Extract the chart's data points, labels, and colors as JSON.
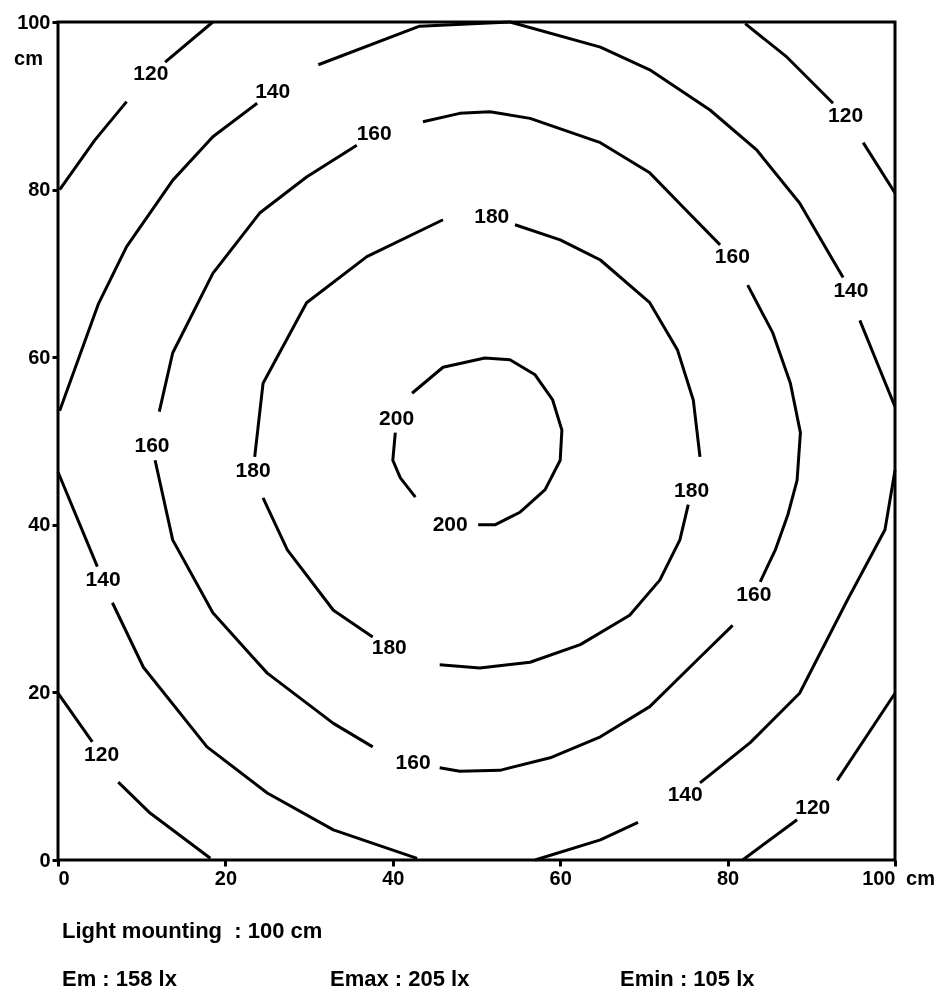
{
  "chart_data": {
    "type": "line",
    "xlim": [
      0,
      100
    ],
    "ylim": [
      0,
      100
    ],
    "xticks": [
      0,
      20,
      40,
      60,
      80,
      100
    ],
    "yticks": [
      0,
      20,
      40,
      60,
      80,
      100
    ],
    "xlabel": "cm",
    "ylabel": "cm",
    "series": [
      {
        "name": "200",
        "color": "#000000",
        "x": [
          42.7,
          40.9,
          40.0,
          40.3
        ],
        "values": [
          43.3,
          45.6,
          47.7,
          51.0
        ]
      },
      {
        "name": "200",
        "color": "#000000",
        "x": [
          42.3,
          46.0,
          51.0,
          54.0,
          57.0,
          59.1,
          60.2,
          60.0,
          58.2,
          55.2,
          52.2,
          50.2
        ],
        "values": [
          55.7,
          58.8,
          59.9,
          59.7,
          57.9,
          54.9,
          51.3,
          47.7,
          44.2,
          41.5,
          40.0,
          40.0
        ]
      },
      {
        "name": "180",
        "color": "#000000",
        "x": [
          46.0,
          36.9,
          29.7,
          24.5,
          23.5
        ],
        "values": [
          76.4,
          72.0,
          66.5,
          56.9,
          48.1
        ]
      },
      {
        "name": "180",
        "color": "#000000",
        "x": [
          24.5,
          27.4,
          32.9,
          37.6
        ],
        "values": [
          43.2,
          37.0,
          29.8,
          26.6
        ]
      },
      {
        "name": "180",
        "color": "#000000",
        "x": [
          45.6,
          50.4,
          56.4,
          62.4,
          68.3,
          71.9,
          74.3,
          75.3
        ],
        "values": [
          23.3,
          22.9,
          23.6,
          25.7,
          29.2,
          33.4,
          38.2,
          42.4
        ]
      },
      {
        "name": "180",
        "color": "#000000",
        "x": [
          76.7,
          75.9,
          74.0,
          70.7,
          64.8,
          60.0,
          54.6
        ],
        "values": [
          48.1,
          54.9,
          60.9,
          66.5,
          71.6,
          74.0,
          75.8
        ]
      },
      {
        "name": "160",
        "color": "#000000",
        "x": [
          43.6,
          48.0,
          51.6,
          56.4,
          64.8,
          70.7,
          74.7,
          79.1
        ],
        "values": [
          88.1,
          89.1,
          89.3,
          88.5,
          85.6,
          82.0,
          77.9,
          73.4
        ]
      },
      {
        "name": "160",
        "color": "#000000",
        "x": [
          82.4,
          85.4,
          87.5,
          88.7,
          88.3,
          87.2,
          85.7,
          83.9
        ],
        "values": [
          68.6,
          62.9,
          56.9,
          51.0,
          45.3,
          41.2,
          37.0,
          33.2
        ]
      },
      {
        "name": "160",
        "color": "#000000",
        "x": [
          80.6,
          76.7,
          70.7,
          64.8,
          58.8,
          52.8,
          48.0,
          45.6
        ],
        "values": [
          28.0,
          24.2,
          18.3,
          14.7,
          12.2,
          10.7,
          10.6,
          11.0
        ]
      },
      {
        "name": "160",
        "color": "#000000",
        "x": [
          37.6,
          32.9,
          25.0,
          18.5,
          13.7,
          11.6
        ],
        "values": [
          13.5,
          16.3,
          22.3,
          29.5,
          38.2,
          47.7
        ]
      },
      {
        "name": "160",
        "color": "#000000",
        "x": [
          12.1,
          13.7,
          18.5,
          24.1,
          29.7,
          35.7
        ],
        "values": [
          53.5,
          60.5,
          70.0,
          77.2,
          81.5,
          85.3
        ]
      },
      {
        "name": "140",
        "color": "#000000",
        "x": [
          0.2,
          4.8,
          8.2,
          13.7,
          18.5,
          23.8
        ],
        "values": [
          53.6,
          66.3,
          73.2,
          81.1,
          86.3,
          90.3
        ]
      },
      {
        "name": "140",
        "color": "#000000",
        "x": [
          31.1,
          43.2,
          54.0,
          64.8,
          70.7,
          77.9,
          83.5,
          88.6,
          93.8
        ],
        "values": [
          94.9,
          99.5,
          100.0,
          97.0,
          94.3,
          89.5,
          84.7,
          78.4,
          69.5
        ]
      },
      {
        "color": "#000000",
        "x": [
          95.8,
          98.2,
          100
        ],
        "values": [
          64.4,
          58.5,
          54.1
        ]
      },
      {
        "name": "140",
        "color": "#000000",
        "x": [
          100,
          98.8,
          94.3,
          88.6,
          82.7,
          76.7
        ],
        "values": [
          46.5,
          39.4,
          31.0,
          19.9,
          14.0,
          9.2
        ]
      },
      {
        "color": "#000000",
        "x": [
          69.3,
          64.8,
          57.0
        ],
        "values": [
          4.5,
          2.4,
          0
        ]
      },
      {
        "name": "140",
        "color": "#000000",
        "x": [
          0,
          4.7
        ],
        "values": [
          46.3,
          35.0
        ]
      },
      {
        "color": "#000000",
        "x": [
          6.5,
          10.2,
          17.8,
          25.0,
          32.9,
          42.9
        ],
        "values": [
          30.7,
          23.0,
          13.5,
          8.0,
          3.6,
          0.2
        ]
      },
      {
        "name": "120",
        "color": "#000000",
        "x": [
          18.5,
          12.8
        ],
        "values": [
          100,
          95.2
        ]
      },
      {
        "color": "#000000",
        "x": [
          8.2,
          4.4,
          0.2
        ],
        "values": [
          90.5,
          85.9,
          80.0
        ]
      },
      {
        "name": "120",
        "color": "#000000",
        "x": [
          82.1,
          87.1,
          92.6
        ],
        "values": [
          99.8,
          95.8,
          90.3
        ]
      },
      {
        "color": "#000000",
        "x": [
          96.2,
          100
        ],
        "values": [
          85.6,
          79.6
        ]
      },
      {
        "name": "120",
        "color": "#000000",
        "x": [
          0,
          4.1
        ],
        "values": [
          19.9,
          14.1
        ]
      },
      {
        "color": "#000000",
        "x": [
          7.2,
          11.0,
          18.2
        ],
        "values": [
          9.3,
          5.6,
          0.2
        ]
      },
      {
        "name": "120",
        "color": "#000000",
        "x": [
          81.8,
          88.3
        ],
        "values": [
          0,
          4.8
        ]
      },
      {
        "color": "#000000",
        "x": [
          93.1,
          100
        ],
        "values": [
          9.5,
          19.9
        ]
      }
    ],
    "annotations": [
      "Light mounting  : 100 cm",
      "Em : 158 lx",
      "Emax : 205 lx",
      "Emin : 105 lx"
    ]
  }
}
